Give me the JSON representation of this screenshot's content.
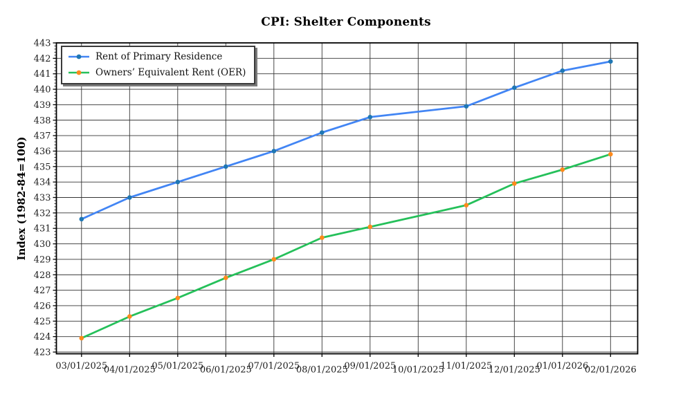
{
  "title": "CPI: Shelter Components",
  "chart_data": {
    "type": "line",
    "title": "CPI: Shelter Components",
    "xlabel": "",
    "ylabel": "Index (1982-84=100)",
    "categories": [
      "03/01/2025",
      "04/01/2025",
      "05/01/2025",
      "06/01/2025",
      "07/01/2025",
      "08/01/2025",
      "09/01/2025",
      "10/01/2025",
      "11/01/2025",
      "12/01/2025",
      "01/01/2026",
      "02/01/2026"
    ],
    "series": [
      {
        "name": "Rent of Primary Residence",
        "line_color": "#4285f4",
        "marker_color": "#1f77b4",
        "values": [
          431.6,
          433.0,
          434.0,
          435.0,
          436.0,
          437.2,
          438.2,
          null,
          438.9,
          440.1,
          441.2,
          441.8
        ]
      },
      {
        "name": "Owners’ Equivalent Rent (OER)",
        "line_color": "#25c05a",
        "marker_color": "#ff8a1c",
        "values": [
          423.9,
          425.3,
          426.5,
          427.8,
          429.0,
          430.4,
          431.1,
          null,
          432.5,
          433.9,
          434.8,
          435.8
        ]
      }
    ],
    "yticks": [
      423,
      424,
      425,
      426,
      427,
      428,
      429,
      430,
      431,
      432,
      433,
      434,
      435,
      436,
      437,
      438,
      439,
      440,
      441,
      442,
      443
    ],
    "ylim": [
      422.85,
      443
    ],
    "grid": true,
    "legend_position": "upper left"
  }
}
